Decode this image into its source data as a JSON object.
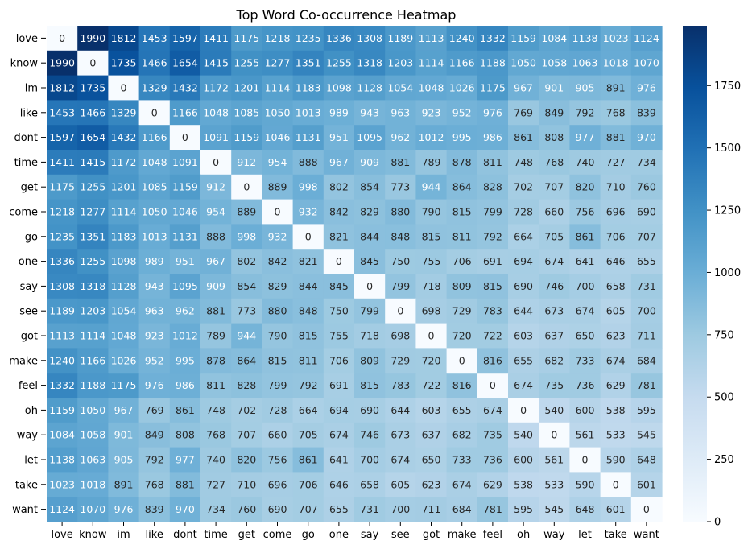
{
  "chart_data": {
    "type": "heatmap",
    "title": "Top Word Co-occurrence Heatmap",
    "xlabel": "",
    "ylabel": "",
    "rows": [
      "love",
      "know",
      "im",
      "like",
      "dont",
      "time",
      "get",
      "come",
      "go",
      "one",
      "say",
      "see",
      "got",
      "make",
      "feel",
      "oh",
      "way",
      "let",
      "take",
      "want"
    ],
    "columns": [
      "love",
      "know",
      "im",
      "like",
      "dont",
      "time",
      "get",
      "come",
      "go",
      "one",
      "say",
      "see",
      "got",
      "make",
      "feel",
      "oh",
      "way",
      "let",
      "take",
      "want"
    ],
    "values": [
      [
        0,
        1990,
        1812,
        1453,
        1597,
        1411,
        1175,
        1218,
        1235,
        1336,
        1308,
        1189,
        1113,
        1240,
        1332,
        1159,
        1084,
        1138,
        1023,
        1124
      ],
      [
        1990,
        0,
        1735,
        1466,
        1654,
        1415,
        1255,
        1277,
        1351,
        1255,
        1318,
        1203,
        1114,
        1166,
        1188,
        1050,
        1058,
        1063,
        1018,
        1070
      ],
      [
        1812,
        1735,
        0,
        1329,
        1432,
        1172,
        1201,
        1114,
        1183,
        1098,
        1128,
        1054,
        1048,
        1026,
        1175,
        967,
        901,
        905,
        891,
        976
      ],
      [
        1453,
        1466,
        1329,
        0,
        1166,
        1048,
        1085,
        1050,
        1013,
        989,
        943,
        963,
        923,
        952,
        976,
        769,
        849,
        792,
        768,
        839
      ],
      [
        1597,
        1654,
        1432,
        1166,
        0,
        1091,
        1159,
        1046,
        1131,
        951,
        1095,
        962,
        1012,
        995,
        986,
        861,
        808,
        977,
        881,
        970
      ],
      [
        1411,
        1415,
        1172,
        1048,
        1091,
        0,
        912,
        954,
        888,
        967,
        909,
        881,
        789,
        878,
        811,
        748,
        768,
        740,
        727,
        734
      ],
      [
        1175,
        1255,
        1201,
        1085,
        1159,
        912,
        0,
        889,
        998,
        802,
        854,
        773,
        944,
        864,
        828,
        702,
        707,
        820,
        710,
        760
      ],
      [
        1218,
        1277,
        1114,
        1050,
        1046,
        954,
        889,
        0,
        932,
        842,
        829,
        880,
        790,
        815,
        799,
        728,
        660,
        756,
        696,
        690
      ],
      [
        1235,
        1351,
        1183,
        1013,
        1131,
        888,
        998,
        932,
        0,
        821,
        844,
        848,
        815,
        811,
        792,
        664,
        705,
        861,
        706,
        707
      ],
      [
        1336,
        1255,
        1098,
        989,
        951,
        967,
        802,
        842,
        821,
        0,
        845,
        750,
        755,
        706,
        691,
        694,
        674,
        641,
        646,
        655
      ],
      [
        1308,
        1318,
        1128,
        943,
        1095,
        909,
        854,
        829,
        844,
        845,
        0,
        799,
        718,
        809,
        815,
        690,
        746,
        700,
        658,
        731
      ],
      [
        1189,
        1203,
        1054,
        963,
        962,
        881,
        773,
        880,
        848,
        750,
        799,
        0,
        698,
        729,
        783,
        644,
        673,
        674,
        605,
        700
      ],
      [
        1113,
        1114,
        1048,
        923,
        1012,
        789,
        944,
        790,
        815,
        755,
        718,
        698,
        0,
        720,
        722,
        603,
        637,
        650,
        623,
        711
      ],
      [
        1240,
        1166,
        1026,
        952,
        995,
        878,
        864,
        815,
        811,
        706,
        809,
        729,
        720,
        0,
        816,
        655,
        682,
        733,
        674,
        684
      ],
      [
        1332,
        1188,
        1175,
        976,
        986,
        811,
        828,
        799,
        792,
        691,
        815,
        783,
        722,
        816,
        0,
        674,
        735,
        736,
        629,
        781
      ],
      [
        1159,
        1050,
        967,
        769,
        861,
        748,
        702,
        728,
        664,
        694,
        690,
        644,
        603,
        655,
        674,
        0,
        540,
        600,
        538,
        595
      ],
      [
        1084,
        1058,
        901,
        849,
        808,
        768,
        707,
        660,
        705,
        674,
        746,
        673,
        637,
        682,
        735,
        540,
        0,
        561,
        533,
        545
      ],
      [
        1138,
        1063,
        905,
        792,
        977,
        740,
        820,
        756,
        861,
        641,
        700,
        674,
        650,
        733,
        736,
        600,
        561,
        0,
        590,
        648
      ],
      [
        1023,
        1018,
        891,
        768,
        881,
        727,
        710,
        696,
        706,
        646,
        658,
        605,
        623,
        674,
        629,
        538,
        533,
        590,
        0,
        601
      ],
      [
        1124,
        1070,
        976,
        839,
        970,
        734,
        760,
        690,
        707,
        655,
        731,
        700,
        711,
        684,
        781,
        595,
        545,
        648,
        601,
        0
      ]
    ],
    "vmin": 0,
    "vmax": 1990,
    "colormap": "Blues",
    "colorbar": {
      "ticks": [
        0,
        250,
        500,
        750,
        1000,
        1250,
        1500,
        1750
      ]
    },
    "annotations": true,
    "grid": false
  }
}
